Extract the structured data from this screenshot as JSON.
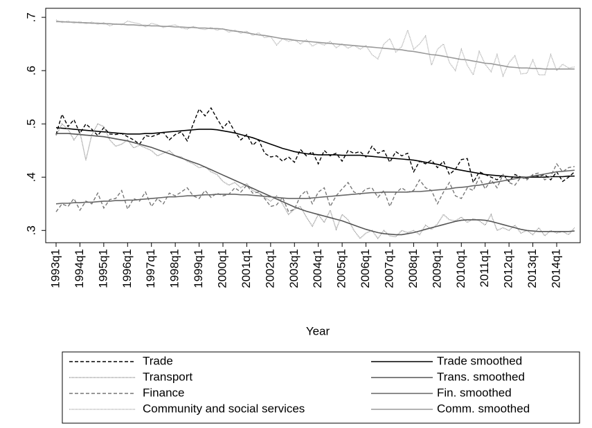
{
  "chart_data": {
    "type": "line",
    "x_label": "Year",
    "categories": [
      "1993q1",
      null,
      null,
      null,
      "1994q1",
      null,
      null,
      null,
      "1995q1",
      null,
      null,
      null,
      "1996q1",
      null,
      null,
      null,
      "1997q1",
      null,
      null,
      null,
      "1998q1",
      null,
      null,
      null,
      "1999q1",
      null,
      null,
      null,
      "2000q1",
      null,
      null,
      null,
      "2001q1",
      null,
      null,
      null,
      "2002q1",
      null,
      null,
      null,
      "2003q1",
      null,
      null,
      null,
      "2004q1",
      null,
      null,
      null,
      "2005q1",
      null,
      null,
      null,
      "2006q1",
      null,
      null,
      null,
      "2007q1",
      null,
      null,
      null,
      "2008q1",
      null,
      null,
      null,
      "2009q1",
      null,
      null,
      null,
      "2010q1",
      null,
      null,
      null,
      "2011q1",
      null,
      null,
      null,
      "2012q1",
      null,
      null,
      null,
      "2013q1",
      null,
      null,
      null,
      "2014q1",
      null,
      null,
      null
    ],
    "ylim": [
      0.277,
      0.717
    ],
    "yticks": [
      {
        "value": 0.3,
        "label": ".3"
      },
      {
        "value": 0.4,
        "label": ".4"
      },
      {
        "value": 0.5,
        "label": ".5"
      },
      {
        "value": 0.6,
        "label": ".6"
      },
      {
        "value": 0.7,
        "label": ".7"
      }
    ],
    "series": [
      {
        "name": "Trade",
        "color": "#000000",
        "dash": "dashed",
        "values": [
          0.48,
          0.518,
          0.495,
          0.508,
          0.482,
          0.5,
          0.49,
          0.478,
          0.493,
          0.481,
          0.48,
          0.482,
          0.476,
          0.47,
          0.462,
          0.478,
          0.476,
          0.48,
          0.484,
          0.47,
          0.48,
          0.485,
          0.468,
          0.5,
          0.528,
          0.515,
          0.53,
          0.51,
          0.492,
          0.505,
          0.485,
          0.47,
          0.48,
          0.46,
          0.47,
          0.445,
          0.438,
          0.44,
          0.43,
          0.438,
          0.428,
          0.452,
          0.44,
          0.448,
          0.425,
          0.45,
          0.44,
          0.445,
          0.43,
          0.45,
          0.445,
          0.448,
          0.438,
          0.458,
          0.445,
          0.45,
          0.428,
          0.448,
          0.44,
          0.445,
          0.41,
          0.43,
          0.425,
          0.432,
          0.418,
          0.43,
          0.405,
          0.415,
          0.433,
          0.435,
          0.39,
          0.41,
          0.405,
          0.4,
          0.395,
          0.405,
          0.392,
          0.405,
          0.4,
          0.398,
          0.403,
          0.402,
          0.405,
          0.395,
          0.41,
          0.392,
          0.4,
          0.41
        ]
      },
      {
        "name": "Trade smoothed",
        "color": "#000000",
        "dash": "solid",
        "values": [
          0.493,
          0.492,
          0.491,
          0.49,
          0.489,
          0.488,
          0.487,
          0.486,
          0.485,
          0.484,
          0.483,
          0.482,
          0.481,
          0.481,
          0.481,
          0.482,
          0.482,
          0.483,
          0.484,
          0.485,
          0.486,
          0.487,
          0.488,
          0.489,
          0.49,
          0.49,
          0.49,
          0.489,
          0.487,
          0.485,
          0.483,
          0.48,
          0.477,
          0.474,
          0.47,
          0.466,
          0.462,
          0.458,
          0.454,
          0.451,
          0.448,
          0.446,
          0.444,
          0.443,
          0.442,
          0.442,
          0.442,
          0.442,
          0.441,
          0.441,
          0.441,
          0.441,
          0.44,
          0.439,
          0.438,
          0.437,
          0.436,
          0.435,
          0.434,
          0.433,
          0.432,
          0.43,
          0.428,
          0.426,
          0.424,
          0.421,
          0.418,
          0.415,
          0.413,
          0.411,
          0.409,
          0.407,
          0.405,
          0.404,
          0.403,
          0.402,
          0.401,
          0.4,
          0.4,
          0.4,
          0.4,
          0.4,
          0.4,
          0.401,
          0.401,
          0.401,
          0.402,
          0.402
        ]
      },
      {
        "name": "Transport",
        "color": "#8a8a8a",
        "dash": "dotted",
        "values": [
          0.478,
          0.5,
          0.49,
          0.47,
          0.485,
          0.432,
          0.48,
          0.5,
          0.495,
          0.47,
          0.458,
          0.462,
          0.47,
          0.455,
          0.46,
          0.455,
          0.45,
          0.44,
          0.445,
          0.45,
          0.44,
          0.438,
          0.43,
          0.425,
          0.418,
          0.42,
          0.41,
          0.405,
          0.392,
          0.385,
          0.39,
          0.38,
          0.388,
          0.375,
          0.37,
          0.362,
          0.355,
          0.365,
          0.35,
          0.33,
          0.34,
          0.345,
          0.325,
          0.308,
          0.33,
          0.315,
          0.338,
          0.302,
          0.33,
          0.32,
          0.3,
          0.285,
          0.295,
          0.3,
          0.285,
          0.3,
          0.29,
          0.288,
          0.3,
          0.296,
          0.3,
          0.292,
          0.31,
          0.302,
          0.312,
          0.33,
          0.32,
          0.318,
          0.325,
          0.315,
          0.322,
          0.318,
          0.31,
          0.33,
          0.3,
          0.305,
          0.3,
          0.31,
          0.295,
          0.3,
          0.292,
          0.305,
          0.29,
          0.3,
          0.295,
          0.298,
          0.292,
          0.305
        ]
      },
      {
        "name": "Trans. smoothed",
        "color": "#555555",
        "dash": "solid",
        "values": [
          0.482,
          0.482,
          0.482,
          0.481,
          0.48,
          0.479,
          0.478,
          0.477,
          0.476,
          0.474,
          0.472,
          0.47,
          0.468,
          0.465,
          0.462,
          0.459,
          0.456,
          0.452,
          0.448,
          0.444,
          0.44,
          0.436,
          0.432,
          0.428,
          0.424,
          0.419,
          0.414,
          0.409,
          0.404,
          0.399,
          0.394,
          0.389,
          0.384,
          0.379,
          0.374,
          0.369,
          0.364,
          0.359,
          0.354,
          0.349,
          0.344,
          0.34,
          0.336,
          0.333,
          0.33,
          0.327,
          0.324,
          0.321,
          0.318,
          0.314,
          0.31,
          0.306,
          0.302,
          0.299,
          0.296,
          0.294,
          0.293,
          0.292,
          0.292,
          0.294,
          0.296,
          0.299,
          0.302,
          0.305,
          0.308,
          0.311,
          0.314,
          0.317,
          0.319,
          0.32,
          0.32,
          0.32,
          0.319,
          0.317,
          0.314,
          0.311,
          0.308,
          0.305,
          0.302,
          0.3,
          0.299,
          0.298,
          0.298,
          0.298,
          0.298,
          0.298,
          0.298,
          0.299
        ]
      },
      {
        "name": "Finance",
        "color": "#777777",
        "dash": "dashed",
        "values": [
          0.335,
          0.35,
          0.345,
          0.36,
          0.338,
          0.355,
          0.35,
          0.37,
          0.342,
          0.358,
          0.36,
          0.375,
          0.34,
          0.36,
          0.355,
          0.372,
          0.345,
          0.36,
          0.35,
          0.37,
          0.365,
          0.372,
          0.38,
          0.365,
          0.36,
          0.375,
          0.362,
          0.37,
          0.365,
          0.368,
          0.38,
          0.372,
          0.385,
          0.37,
          0.372,
          0.36,
          0.345,
          0.348,
          0.362,
          0.335,
          0.34,
          0.365,
          0.375,
          0.35,
          0.372,
          0.38,
          0.345,
          0.365,
          0.378,
          0.39,
          0.372,
          0.368,
          0.378,
          0.38,
          0.362,
          0.375,
          0.345,
          0.37,
          0.38,
          0.372,
          0.375,
          0.395,
          0.38,
          0.375,
          0.35,
          0.372,
          0.39,
          0.365,
          0.36,
          0.38,
          0.375,
          0.4,
          0.378,
          0.395,
          0.38,
          0.405,
          0.39,
          0.385,
          0.4,
          0.395,
          0.405,
          0.408,
          0.395,
          0.402,
          0.425,
          0.41,
          0.418,
          0.42
        ]
      },
      {
        "name": "Fin. smoothed",
        "color": "#666666",
        "dash": "solid",
        "values": [
          0.35,
          0.351,
          0.351,
          0.352,
          0.352,
          0.353,
          0.353,
          0.354,
          0.355,
          0.355,
          0.356,
          0.356,
          0.357,
          0.357,
          0.358,
          0.359,
          0.36,
          0.361,
          0.362,
          0.363,
          0.363,
          0.364,
          0.365,
          0.365,
          0.366,
          0.367,
          0.367,
          0.368,
          0.368,
          0.368,
          0.368,
          0.367,
          0.367,
          0.366,
          0.365,
          0.364,
          0.363,
          0.362,
          0.361,
          0.36,
          0.36,
          0.36,
          0.36,
          0.361,
          0.362,
          0.363,
          0.364,
          0.365,
          0.366,
          0.367,
          0.368,
          0.369,
          0.37,
          0.371,
          0.371,
          0.372,
          0.372,
          0.372,
          0.372,
          0.372,
          0.373,
          0.373,
          0.374,
          0.375,
          0.376,
          0.377,
          0.378,
          0.38,
          0.381,
          0.382,
          0.384,
          0.385,
          0.387,
          0.389,
          0.391,
          0.393,
          0.395,
          0.397,
          0.399,
          0.4,
          0.402,
          0.404,
          0.406,
          0.408,
          0.41,
          0.411,
          0.412,
          0.413
        ]
      },
      {
        "name": "Community and social services",
        "color": "#aaaaaa",
        "dash": "dotted",
        "values": [
          0.695,
          0.69,
          0.693,
          0.689,
          0.692,
          0.688,
          0.691,
          0.687,
          0.69,
          0.684,
          0.688,
          0.686,
          0.693,
          0.69,
          0.688,
          0.682,
          0.689,
          0.686,
          0.681,
          0.684,
          0.686,
          0.68,
          0.678,
          0.683,
          0.679,
          0.677,
          0.681,
          0.676,
          0.679,
          0.672,
          0.676,
          0.67,
          0.674,
          0.666,
          0.671,
          0.662,
          0.664,
          0.648,
          0.66,
          0.655,
          0.658,
          0.65,
          0.658,
          0.646,
          0.652,
          0.648,
          0.655,
          0.643,
          0.65,
          0.642,
          0.648,
          0.64,
          0.647,
          0.63,
          0.622,
          0.65,
          0.66,
          0.635,
          0.645,
          0.676,
          0.64,
          0.65,
          0.665,
          0.61,
          0.64,
          0.65,
          0.615,
          0.6,
          0.64,
          0.61,
          0.592,
          0.636,
          0.612,
          0.598,
          0.63,
          0.59,
          0.615,
          0.628,
          0.594,
          0.595,
          0.62,
          0.592,
          0.592,
          0.63,
          0.6,
          0.612,
          0.605,
          0.607
        ]
      },
      {
        "name": "Comm. smoothed",
        "color": "#999999",
        "dash": "solid",
        "values": [
          0.692,
          0.692,
          0.691,
          0.691,
          0.69,
          0.69,
          0.689,
          0.689,
          0.688,
          0.688,
          0.687,
          0.687,
          0.686,
          0.686,
          0.685,
          0.685,
          0.684,
          0.684,
          0.683,
          0.683,
          0.682,
          0.682,
          0.681,
          0.681,
          0.68,
          0.68,
          0.679,
          0.679,
          0.678,
          0.676,
          0.674,
          0.673,
          0.671,
          0.669,
          0.667,
          0.666,
          0.664,
          0.662,
          0.66,
          0.659,
          0.657,
          0.656,
          0.655,
          0.654,
          0.653,
          0.652,
          0.651,
          0.65,
          0.649,
          0.648,
          0.647,
          0.646,
          0.645,
          0.644,
          0.643,
          0.642,
          0.641,
          0.64,
          0.639,
          0.637,
          0.636,
          0.634,
          0.632,
          0.63,
          0.629,
          0.627,
          0.625,
          0.623,
          0.621,
          0.62,
          0.618,
          0.616,
          0.614,
          0.613,
          0.611,
          0.609,
          0.607,
          0.606,
          0.605,
          0.605,
          0.604,
          0.604,
          0.603,
          0.603,
          0.603,
          0.603,
          0.603,
          0.603
        ]
      }
    ]
  }
}
